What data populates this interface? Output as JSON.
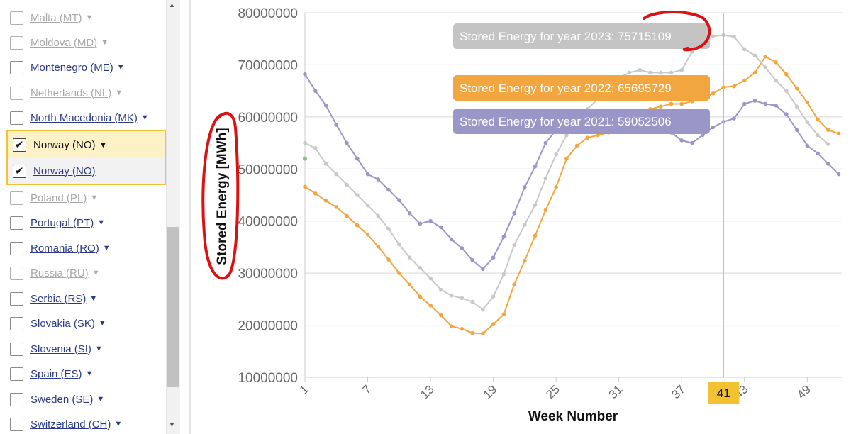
{
  "sidebar": {
    "countries": [
      {
        "name": "Malta (MT)",
        "enabled": false
      },
      {
        "name": "Moldova (MD)",
        "enabled": false
      },
      {
        "name": "Montenegro (ME)",
        "enabled": true
      },
      {
        "name": "Netherlands (NL)",
        "enabled": false
      },
      {
        "name": "North Macedonia (MK)",
        "enabled": true
      },
      {
        "name": "Poland (PL)",
        "enabled": false
      },
      {
        "name": "Portugal (PT)",
        "enabled": true
      },
      {
        "name": "Romania (RO)",
        "enabled": true
      },
      {
        "name": "Russia (RU)",
        "enabled": false
      },
      {
        "name": "Serbia (RS)",
        "enabled": true
      },
      {
        "name": "Slovakia (SK)",
        "enabled": true
      },
      {
        "name": "Slovenia (SI)",
        "enabled": true
      },
      {
        "name": "Spain (ES)",
        "enabled": true
      },
      {
        "name": "Sweden (SE)",
        "enabled": true
      },
      {
        "name": "Switzerland (CH)",
        "enabled": true
      }
    ],
    "selected": {
      "main_label": "Norway (NO)",
      "sub_label": "Norway (NO)",
      "checked": true
    }
  },
  "colors": {
    "series_2021": "#9b96c8",
    "series_2022": "#f2a640",
    "series_2023": "#c8c8c8",
    "crosshair": "#f2c232",
    "annotation": "#dd1111"
  },
  "chart_data": {
    "type": "line",
    "xlabel": "Week Number",
    "ylabel": "Stored Energy [MWh]",
    "ylim": [
      10000000,
      80000000
    ],
    "yticks": [
      "10000000",
      "20000000",
      "30000000",
      "40000000",
      "50000000",
      "60000000",
      "70000000",
      "80000000"
    ],
    "xticks": [
      "1",
      "7",
      "13",
      "19",
      "25",
      "31",
      "37",
      "43",
      "49"
    ],
    "grid": true,
    "crosshair_week": "41",
    "series": [
      {
        "name": "2021",
        "tooltip": "Stored Energy for year 2021: 59052506",
        "x": [
          1,
          2,
          3,
          4,
          5,
          6,
          7,
          8,
          9,
          10,
          11,
          12,
          13,
          14,
          15,
          16,
          17,
          18,
          19,
          20,
          21,
          22,
          23,
          24,
          25,
          26,
          27,
          28,
          29,
          30,
          31,
          32,
          33,
          34,
          35,
          36,
          37,
          38,
          39,
          40,
          41,
          42,
          43,
          44,
          45,
          46,
          47,
          48,
          49,
          50,
          51,
          52
        ],
        "values": [
          68200000,
          65000000,
          62200000,
          58500000,
          55000000,
          52000000,
          49000000,
          48000000,
          46000000,
          44000000,
          41500000,
          39500000,
          40000000,
          38800000,
          36500000,
          34800000,
          32500000,
          30800000,
          33000000,
          37000000,
          41500000,
          46500000,
          50500000,
          55000000,
          57500000,
          58500000,
          59500000,
          60000000,
          60500000,
          61000000,
          60500000,
          60000000,
          59500000,
          59000000,
          58000000,
          57000000,
          55500000,
          55000000,
          56500000,
          58000000,
          59052506,
          59700000,
          62500000,
          63100000,
          62500000,
          62200000,
          60500000,
          57500000,
          54500000,
          53000000,
          51000000,
          49000000
        ]
      },
      {
        "name": "2022",
        "tooltip": "Stored Energy for year 2022: 65695729",
        "x": [
          1,
          2,
          3,
          4,
          5,
          6,
          7,
          8,
          9,
          10,
          11,
          12,
          13,
          14,
          15,
          16,
          17,
          18,
          19,
          20,
          21,
          22,
          23,
          24,
          25,
          26,
          27,
          28,
          29,
          30,
          31,
          32,
          33,
          34,
          35,
          36,
          37,
          38,
          39,
          40,
          41,
          42,
          43,
          44,
          45,
          46,
          47,
          48,
          49,
          50,
          51,
          52
        ],
        "values": [
          46600000,
          45300000,
          43900000,
          42700000,
          41000000,
          39200000,
          37400000,
          35100000,
          32600000,
          30000000,
          27800000,
          25500000,
          23800000,
          21900000,
          19800000,
          19300000,
          18500000,
          18400000,
          20200000,
          22100000,
          27800000,
          32400000,
          37200000,
          42100000,
          46500000,
          52000000,
          54500000,
          56000000,
          56500000,
          57000000,
          58000000,
          59500000,
          60500000,
          61500000,
          62000000,
          62500000,
          62500000,
          63000000,
          63500000,
          64500000,
          65695729,
          65900000,
          67000000,
          68500000,
          71600000,
          70500000,
          68200000,
          65500000,
          62800000,
          59500000,
          57500000,
          56800000
        ]
      },
      {
        "name": "2023",
        "tooltip": "Stored Energy for year 2023: 75715109",
        "x": [
          1,
          2,
          3,
          4,
          5,
          6,
          7,
          8,
          9,
          10,
          11,
          12,
          13,
          14,
          15,
          16,
          17,
          18,
          19,
          20,
          21,
          22,
          23,
          24,
          25,
          26,
          27,
          28,
          29,
          30,
          31,
          32,
          33,
          34,
          35,
          36,
          37,
          38,
          39,
          40,
          41,
          42,
          43,
          44,
          45,
          46,
          47,
          48,
          49,
          50,
          51
        ],
        "values": [
          55000000,
          54000000,
          51000000,
          49000000,
          47000000,
          45000000,
          43000000,
          41000000,
          38500000,
          35500000,
          33000000,
          31000000,
          29000000,
          26800000,
          25700000,
          25200000,
          24500000,
          23000000,
          25500000,
          29800000,
          35400000,
          39300000,
          43100000,
          48200000,
          52800000,
          56500000,
          59000000,
          61500000,
          63500000,
          66000000,
          67500000,
          68500000,
          69000000,
          68500000,
          68500000,
          68500000,
          69000000,
          72500000,
          74000000,
          75500000,
          75715109,
          75400000,
          73000000,
          71800000,
          69500000,
          67000000,
          65000000,
          62000000,
          59000000,
          56500000,
          54800000
        ]
      }
    ]
  }
}
